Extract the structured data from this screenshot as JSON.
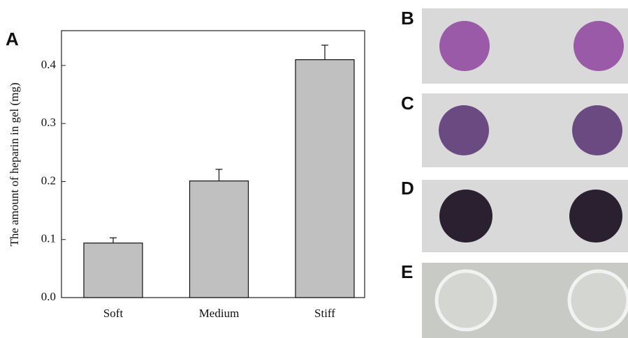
{
  "chart_data": {
    "type": "bar",
    "panel_label": "A",
    "y_label": "The amount of heparin in gel (mg)",
    "categories": [
      "Soft",
      "Medium",
      "Stiff"
    ],
    "values": [
      0.094,
      0.201,
      0.41
    ],
    "errors": [
      0.009,
      0.02,
      0.025
    ],
    "color": "#c0c0c0",
    "ylim": [
      0,
      0.46
    ],
    "yticks": [
      {
        "value": 0,
        "label": "0.0"
      },
      0.1,
      0.2,
      0.3,
      0.4
    ]
  },
  "panels": [
    {
      "label": "B"
    },
    {
      "label": "C"
    },
    {
      "label": "D"
    },
    {
      "label": "E"
    }
  ]
}
